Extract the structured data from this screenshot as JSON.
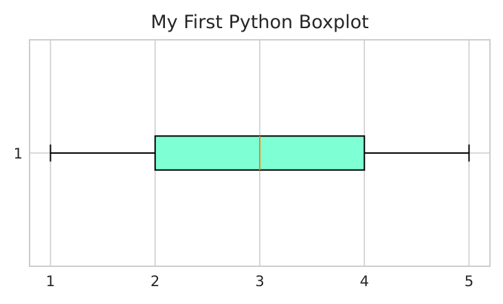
{
  "chart_data": {
    "type": "boxplot",
    "orientation": "horizontal",
    "title": "My First Python Boxplot",
    "xlabel": "",
    "ylabel": "",
    "xlim": [
      0.8,
      5.2
    ],
    "x_ticks": [
      "1",
      "2",
      "3",
      "4",
      "5"
    ],
    "y_ticks": [
      "1"
    ],
    "grid": true,
    "boxes": [
      {
        "position": 1,
        "whisker_low": 1,
        "q1": 2,
        "median": 3,
        "q3": 4,
        "whisker_high": 5
      }
    ],
    "colors": {
      "box_fill": "#7FFFD4",
      "box_edge": "#000000",
      "median": "#FF7F0E",
      "grid": "#CCCCCC",
      "spine": "#CCCCCC",
      "text": "#262626"
    }
  }
}
